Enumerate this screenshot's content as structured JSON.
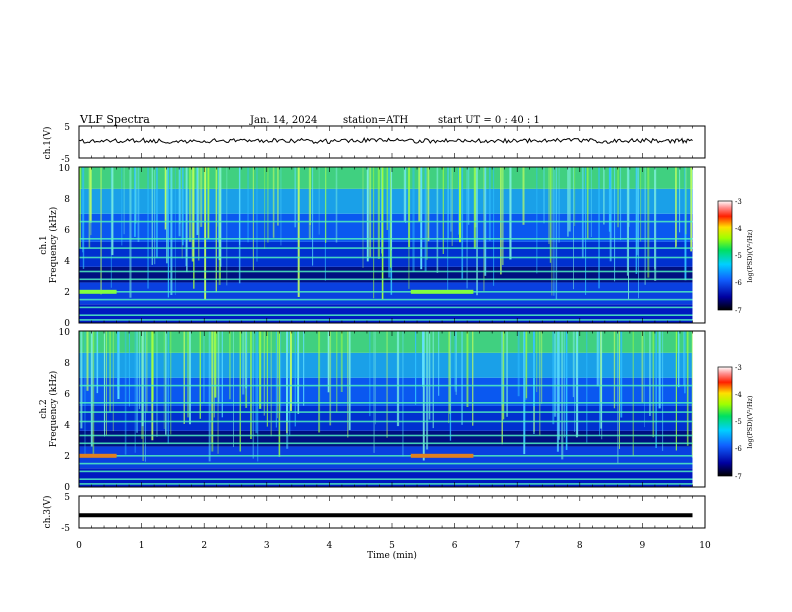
{
  "header": {
    "title": "VLF  Spectra",
    "date": "Jan. 14, 2024",
    "station": "station=ATH",
    "start_ut": "start  UT =   0 : 40 : 1"
  },
  "chart_data": [
    {
      "id": "ch1-waveform",
      "type": "line",
      "title": "",
      "ylabel": "ch.1(V)",
      "xlabel": "",
      "xlim": [
        0,
        10
      ],
      "ylim": [
        -5,
        5
      ],
      "y_ticks": [
        "5",
        "-5"
      ],
      "series": [
        {
          "x": [
            0,
            0.5,
            1,
            1.5,
            2,
            2.5,
            3,
            3.5,
            4,
            4.5,
            5,
            5.5,
            6,
            6.5,
            7,
            7.5,
            8,
            8.5,
            9,
            9.5,
            9.8
          ],
          "values": [
            0.4,
            0.3,
            0.5,
            0.2,
            0.4,
            0.3,
            0.5,
            0.4,
            0.2,
            0.5,
            0.4,
            0.3,
            0.5,
            0.4,
            0.3,
            0.6,
            0.4,
            0.3,
            0.5,
            0.4,
            0.4
          ]
        }
      ]
    },
    {
      "id": "ch1-spectrogram",
      "type": "heatmap",
      "title": "",
      "ylabel_line1": "ch.1",
      "ylabel_line2": "Frequency  (kHz)",
      "xlim": [
        0,
        10
      ],
      "ylim": [
        0,
        10
      ],
      "y_ticks": [
        "0",
        "2",
        "4",
        "6",
        "8",
        "10"
      ],
      "data_end_min": 9.8,
      "colorbar": {
        "label": "log(PSD)(V²/Hz)",
        "range": [
          -7,
          -3
        ],
        "ticks": [
          "-3",
          "-4",
          "-5",
          "-6",
          "-7"
        ]
      },
      "bands_khz": [
        0.2,
        0.5,
        1.0,
        1.5,
        2.0,
        2.8,
        3.3,
        4.2,
        4.8,
        5.4,
        6.5
      ],
      "enhanced_2khz_intervals_min": [
        [
          0,
          0.6
        ],
        [
          5.3,
          6.3
        ]
      ]
    },
    {
      "id": "ch2-spectrogram",
      "type": "heatmap",
      "title": "",
      "ylabel_line1": "ch.2",
      "ylabel_line2": "Frequency  (kHz)",
      "xlim": [
        0,
        10
      ],
      "ylim": [
        0,
        10
      ],
      "y_ticks": [
        "0",
        "2",
        "4",
        "6",
        "8",
        "10"
      ],
      "data_end_min": 9.8,
      "colorbar": {
        "label": "log(PSD)(V²/Hz)",
        "range": [
          -7,
          -3
        ],
        "ticks": [
          "-3",
          "-4",
          "-5",
          "-6",
          "-7"
        ]
      },
      "bands_khz": [
        0.2,
        0.5,
        1.0,
        1.5,
        2.0,
        2.8,
        3.3,
        4.2,
        4.8,
        5.4,
        6.5
      ],
      "enhanced_2khz_intervals_min": [
        [
          0,
          0.6
        ],
        [
          5.3,
          6.3
        ]
      ]
    },
    {
      "id": "ch3-waveform",
      "type": "line",
      "title": "",
      "ylabel": "ch.3(V)",
      "xlabel": "Time  (min)",
      "xlim": [
        0,
        10
      ],
      "ylim": [
        -5,
        5
      ],
      "y_ticks": [
        "5",
        "-5"
      ],
      "x_ticks": [
        "0",
        "1",
        "2",
        "3",
        "4",
        "5",
        "6",
        "7",
        "8",
        "9",
        "10"
      ],
      "series": [
        {
          "x": [
            0,
            9.8
          ],
          "values": [
            -1.0,
            -1.0
          ]
        }
      ]
    }
  ]
}
